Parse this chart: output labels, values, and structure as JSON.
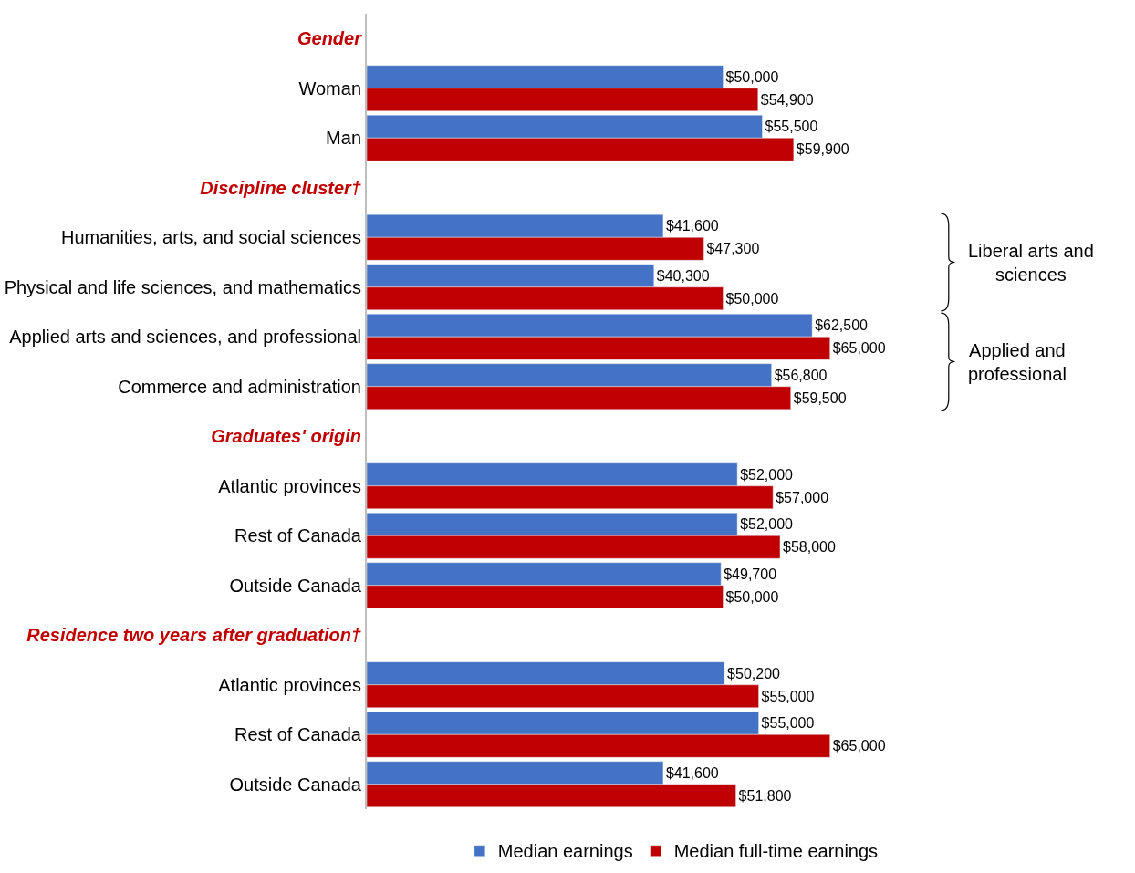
{
  "chart_data": {
    "type": "bar",
    "orientation": "horizontal",
    "categories": [
      "Gender",
      "Woman",
      "Man",
      "Discipline cluster†",
      "Humanities, arts, and social sciences",
      "Physical and life sciences, and mathematics",
      "Applied arts and sciences, and professional",
      "Commerce and administration",
      "Graduates' origin",
      "Atlantic provinces",
      "Rest of Canada",
      "Outside Canada",
      "Residence two years after graduation†",
      "Atlantic provinces",
      "Rest of Canada",
      "Outside Canada"
    ],
    "series": [
      {
        "name": "Median earnings",
        "color": "#4472c4",
        "values": [
          null,
          50000,
          55500,
          null,
          41600,
          40300,
          62500,
          56800,
          null,
          52000,
          52000,
          49700,
          null,
          50200,
          55000,
          41600
        ],
        "value_labels": [
          null,
          "$50,000",
          "$55,500",
          null,
          "$41,600",
          "$40,300",
          "$62,500",
          "$56,800",
          null,
          "$52,000",
          "$52,000",
          "$49,700",
          null,
          "$50,200",
          "$55,000",
          "$41,600"
        ]
      },
      {
        "name": "Median full-time earnings",
        "color": "#c00000",
        "values": [
          null,
          54900,
          59900,
          null,
          47300,
          50000,
          65000,
          59500,
          null,
          57000,
          58000,
          50000,
          null,
          55000,
          65000,
          51800
        ],
        "value_labels": [
          null,
          "$54,900",
          "$59,900",
          null,
          "$47,300",
          "$50,000",
          "$65,000",
          "$59,500",
          null,
          "$57,000",
          "$58,000",
          "$50,000",
          null,
          "$55,000",
          "$65,000",
          "$51,800"
        ]
      }
    ],
    "annotations": [
      "Liberal arts and sciences",
      "Applied and professional"
    ],
    "legend": "bottom"
  }
}
